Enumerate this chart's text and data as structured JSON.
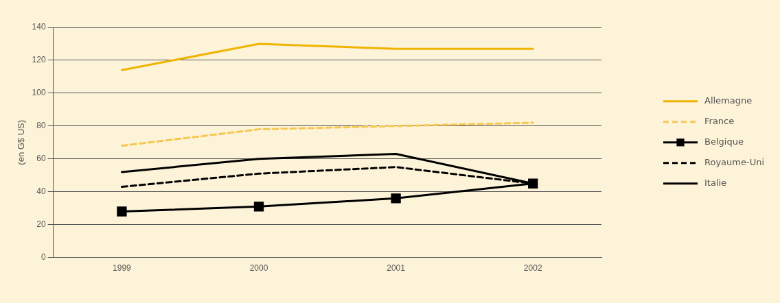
{
  "chart_data": {
    "type": "line",
    "ylabel": "(en G$ US)",
    "categories": [
      "1999",
      "2000",
      "2001",
      "2002"
    ],
    "series": [
      {
        "name": "Allemagne",
        "color": "#f0b400",
        "values": [
          114,
          130,
          127,
          127
        ],
        "line_style": "solid",
        "marker": "none"
      },
      {
        "name": "France",
        "color": "#f7c850",
        "values": [
          68,
          78,
          80,
          82
        ],
        "line_style": "dashed",
        "marker": "none"
      },
      {
        "name": "Belgique",
        "color": "#000000",
        "values": [
          28,
          31,
          36,
          45
        ],
        "line_style": "solid",
        "marker": "square"
      },
      {
        "name": "Royaume-Uni",
        "color": "#000000",
        "values": [
          43,
          51,
          55,
          45
        ],
        "line_style": "dashed",
        "marker": "none"
      },
      {
        "name": "Italie",
        "color": "#000000",
        "values": [
          52,
          60,
          63,
          45
        ],
        "line_style": "solid",
        "marker": "none"
      }
    ],
    "ylim": [
      0,
      140
    ],
    "yticks": [
      0,
      20,
      40,
      60,
      80,
      100,
      120,
      140
    ],
    "grid": "y",
    "legend": "right"
  }
}
